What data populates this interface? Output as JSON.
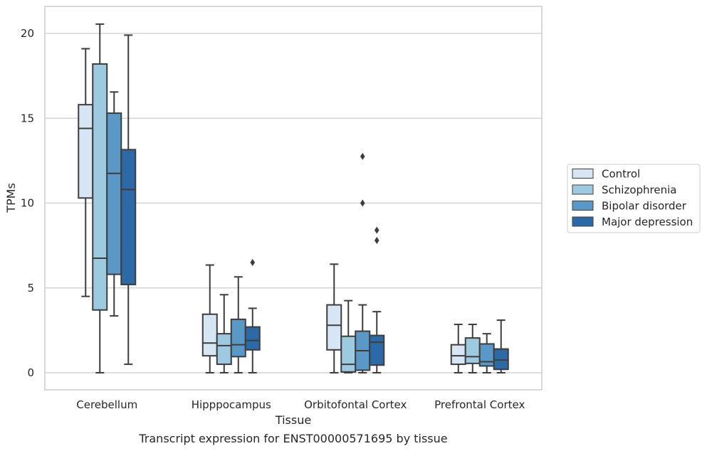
{
  "chart_data": {
    "type": "box",
    "xlabel": "Tissue",
    "ylabel": "TPMs",
    "caption": "Transcript expression for ENST00000571695 by tissue",
    "ylim": [
      -1,
      21.6
    ],
    "yticks": [
      0,
      5,
      10,
      15,
      20
    ],
    "grid": "horizontal",
    "legend_position": "right",
    "categories": [
      "Cerebellum",
      "Hipppocampus",
      "Orbitofontal Cortex",
      "Prefrontal Cortex"
    ],
    "series": [
      {
        "name": "Control",
        "color": "#d6e6f4",
        "boxes": [
          {
            "whislo": 4.5,
            "q1": 10.3,
            "med": 14.4,
            "q3": 15.8,
            "whishi": 19.1,
            "fliers": []
          },
          {
            "whislo": 0.0,
            "q1": 1.0,
            "med": 1.75,
            "q3": 3.45,
            "whishi": 6.35,
            "fliers": []
          },
          {
            "whislo": 0.0,
            "q1": 1.35,
            "med": 2.8,
            "q3": 4.0,
            "whishi": 6.4,
            "fliers": []
          },
          {
            "whislo": 0.0,
            "q1": 0.5,
            "med": 1.0,
            "q3": 1.65,
            "whishi": 2.85,
            "fliers": []
          }
        ]
      },
      {
        "name": "Schizophrenia",
        "color": "#9ecae1",
        "boxes": [
          {
            "whislo": 0.0,
            "q1": 3.7,
            "med": 6.75,
            "q3": 18.2,
            "whishi": 20.55,
            "fliers": []
          },
          {
            "whislo": 0.0,
            "q1": 0.5,
            "med": 1.6,
            "q3": 2.3,
            "whishi": 4.6,
            "fliers": []
          },
          {
            "whislo": 0.0,
            "q1": 0.05,
            "med": 0.5,
            "q3": 2.15,
            "whishi": 4.25,
            "fliers": []
          },
          {
            "whislo": 0.0,
            "q1": 0.55,
            "med": 0.95,
            "q3": 2.05,
            "whishi": 2.85,
            "fliers": []
          }
        ]
      },
      {
        "name": "Bipolar disorder",
        "color": "#5a99c7",
        "boxes": [
          {
            "whislo": 3.35,
            "q1": 5.8,
            "med": 11.75,
            "q3": 15.3,
            "whishi": 16.55,
            "fliers": []
          },
          {
            "whislo": 0.0,
            "q1": 0.95,
            "med": 1.65,
            "q3": 3.15,
            "whishi": 5.65,
            "fliers": []
          },
          {
            "whislo": 0.0,
            "q1": 0.15,
            "med": 1.3,
            "q3": 2.45,
            "whishi": 4.0,
            "fliers": [
              12.75,
              10.0
            ]
          },
          {
            "whislo": 0.0,
            "q1": 0.4,
            "med": 0.65,
            "q3": 1.7,
            "whishi": 2.3,
            "fliers": []
          }
        ]
      },
      {
        "name": "Major depression",
        "color": "#2b6aa6",
        "boxes": [
          {
            "whislo": 0.5,
            "q1": 5.2,
            "med": 10.8,
            "q3": 13.15,
            "whishi": 19.9,
            "fliers": []
          },
          {
            "whislo": 0.0,
            "q1": 1.35,
            "med": 1.9,
            "q3": 2.7,
            "whishi": 3.8,
            "fliers": [
              6.5
            ]
          },
          {
            "whislo": 0.0,
            "q1": 0.45,
            "med": 1.8,
            "q3": 2.2,
            "whishi": 3.6,
            "fliers": [
              8.4,
              7.8
            ]
          },
          {
            "whislo": 0.0,
            "q1": 0.2,
            "med": 0.75,
            "q3": 1.4,
            "whishi": 3.1,
            "fliers": []
          }
        ]
      }
    ]
  }
}
